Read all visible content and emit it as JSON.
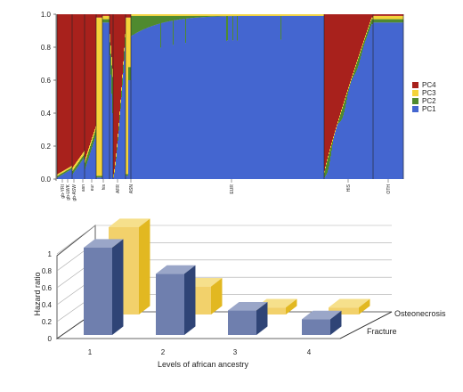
{
  "chart_data": [
    {
      "type": "area",
      "title": "",
      "xlabel": "",
      "ylabel": "",
      "ylim": [
        0,
        1.0
      ],
      "y_ticks": [
        "0.0",
        "0.2",
        "0.4",
        "0.6",
        "0.8",
        "1.0"
      ],
      "stacking": "stacked proportions per individual (admixture plot)",
      "grid": false,
      "legend_position": "right",
      "series": [
        {
          "name": "PC4",
          "color": "#a8211c"
        },
        {
          "name": "PC3",
          "color": "#f4d33a"
        },
        {
          "name": "PC2",
          "color": "#4f8a2f"
        },
        {
          "name": "PC1",
          "color": "#4466d0"
        }
      ],
      "groups": [
        {
          "label": "gb-YRI",
          "dominant": "PC4"
        },
        {
          "label": "gb-LWK",
          "dominant": "PC4"
        },
        {
          "label": "gb-ASW",
          "dominant": "PC4"
        },
        {
          "label": "asn",
          "dominant": "PC3"
        },
        {
          "label": "eur",
          "dominant": "PC1"
        },
        {
          "label": "his",
          "dominant": "PC1"
        },
        {
          "label": "AFR",
          "dominant": "PC4"
        },
        {
          "label": "ASN",
          "dominant": "PC3"
        },
        {
          "label": "EUR",
          "dominant": "PC1"
        },
        {
          "label": "HIS",
          "dominant": "PC1"
        },
        {
          "label": "OTH",
          "dominant": "PC1"
        }
      ]
    },
    {
      "type": "bar",
      "title": "",
      "xlabel": "Levels of african ancestry",
      "ylabel": "Hazard ratio",
      "ylim": [
        0,
        1
      ],
      "y_ticks": [
        "0",
        "0.2",
        "0.4",
        "0.6",
        "0.8",
        "1"
      ],
      "categories": [
        "1",
        "2",
        "3",
        "4"
      ],
      "series": [
        {
          "name": "Fracture",
          "color": "#6f7fae",
          "values": [
            1.0,
            0.7,
            0.28,
            0.18
          ]
        },
        {
          "name": "Osteonecrosis",
          "color": "#f2d16b",
          "values": [
            1.0,
            0.32,
            0.08,
            0.08
          ]
        }
      ],
      "grid": true
    }
  ]
}
